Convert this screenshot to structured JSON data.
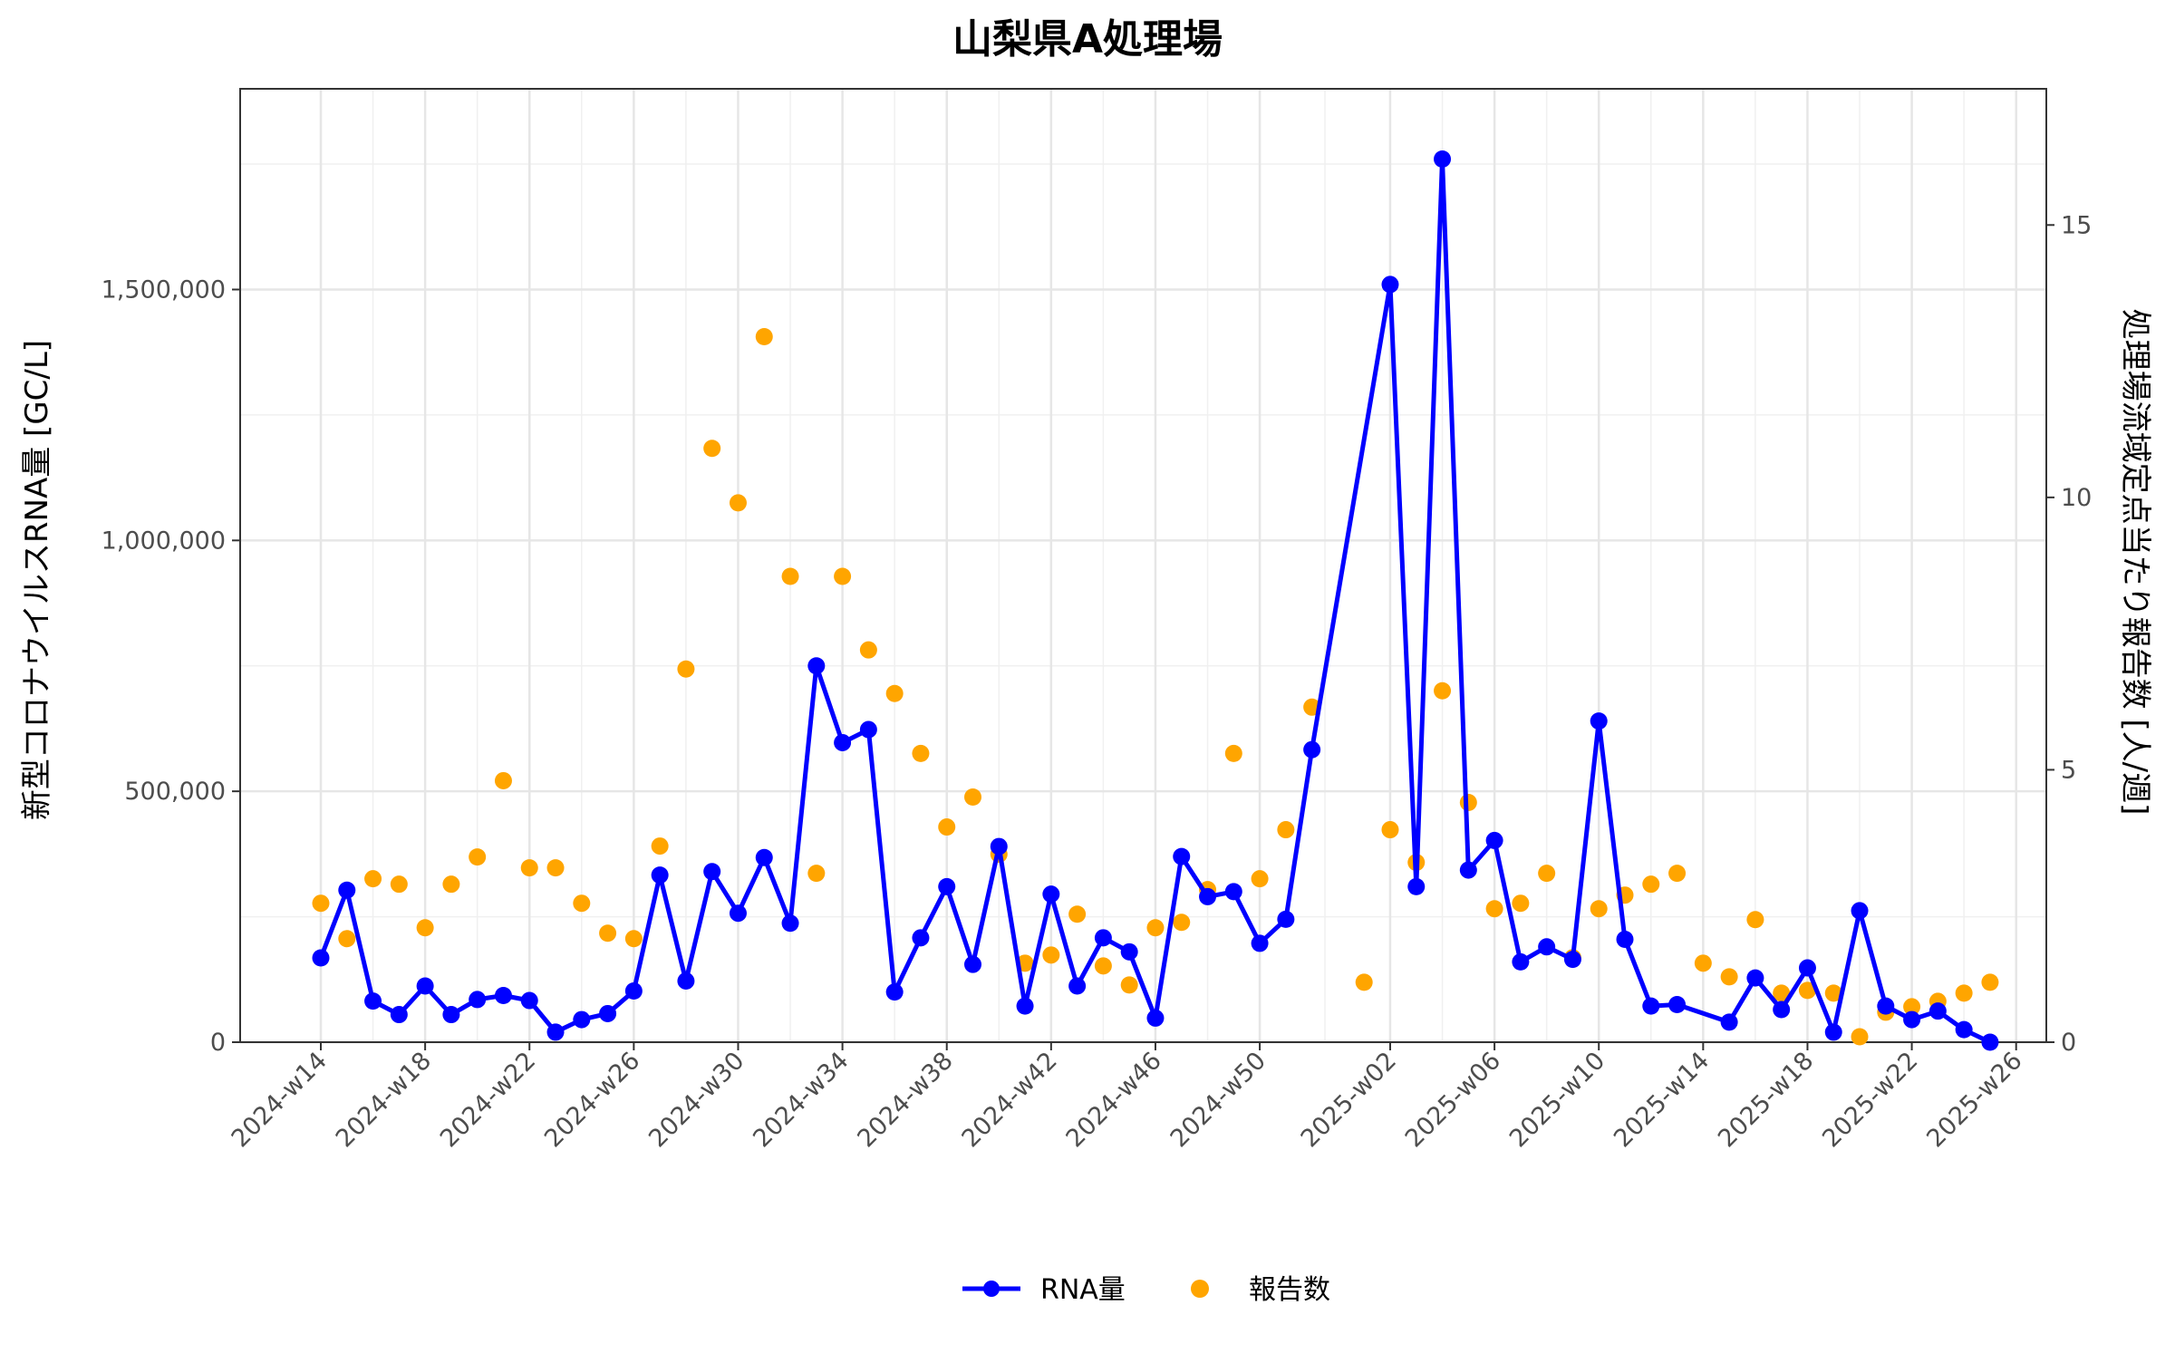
{
  "chart_data": {
    "type": "line",
    "title": "山梨県A処理場",
    "ylabel": "新型コロナウイルスRNA量 [GC/L]",
    "y2label": "処理場流域定点当たり報告数 [人/週]",
    "ylim": [
      0,
      1900000
    ],
    "y2lim": [
      0,
      17.5
    ],
    "y_ticks": [
      0,
      500000,
      1000000,
      1500000
    ],
    "y_tick_labels": [
      "0",
      "500,000",
      "1,000,000",
      "1,500,000"
    ],
    "y2_ticks": [
      0,
      5,
      10,
      15
    ],
    "y2_tick_labels": [
      "0",
      "5",
      "10",
      "15"
    ],
    "x_tick_labels": [
      "2024-w14",
      "2024-w18",
      "2024-w22",
      "2024-w26",
      "2024-w30",
      "2024-w34",
      "2024-w38",
      "2024-w42",
      "2024-w46",
      "2024-w50",
      "2025-w02",
      "2025-w06",
      "2025-w10",
      "2025-w14",
      "2025-w18",
      "2025-w22",
      "2025-w26"
    ],
    "grid": true,
    "legend_position": "bottom",
    "series": [
      {
        "name": "RNA量",
        "axis": "left",
        "color": "#0000ff",
        "points": [
          [
            "2024-w14",
            168000
          ],
          [
            "2024-w15",
            303000
          ],
          [
            "2024-w16",
            82000
          ],
          [
            "2024-w17",
            55000
          ],
          [
            "2024-w18",
            112000
          ],
          [
            "2024-w19",
            55000
          ],
          [
            "2024-w20",
            85000
          ],
          [
            "2024-w21",
            93000
          ],
          [
            "2024-w22",
            83000
          ],
          [
            "2024-w23",
            20000
          ],
          [
            "2024-w24",
            45000
          ],
          [
            "2024-w25",
            57000
          ],
          [
            "2024-w26",
            102000
          ],
          [
            "2024-w27",
            333000
          ],
          [
            "2024-w28",
            122000
          ],
          [
            "2024-w29",
            340000
          ],
          [
            "2024-w30",
            257000
          ],
          [
            "2024-w31",
            368000
          ],
          [
            "2024-w32",
            237000
          ],
          [
            "2024-w33",
            750000
          ],
          [
            "2024-w34",
            597000
          ],
          [
            "2024-w35",
            623000
          ],
          [
            "2024-w36",
            100000
          ],
          [
            "2024-w37",
            208000
          ],
          [
            "2024-w38",
            310000
          ],
          [
            "2024-w39",
            155000
          ],
          [
            "2024-w40",
            390000
          ],
          [
            "2024-w41",
            72000
          ],
          [
            "2024-w42",
            295000
          ],
          [
            "2024-w43",
            112000
          ],
          [
            "2024-w44",
            208000
          ],
          [
            "2024-w45",
            180000
          ],
          [
            "2024-w46",
            48000
          ],
          [
            "2024-w47",
            370000
          ],
          [
            "2024-w48",
            290000
          ],
          [
            "2024-w49",
            300000
          ],
          [
            "2024-w50",
            197000
          ],
          [
            "2024-w51",
            245000
          ],
          [
            "2024-w52",
            583000
          ],
          [
            "2025-w02",
            1510000
          ],
          [
            "2025-w03",
            310000
          ],
          [
            "2025-w04",
            1760000
          ],
          [
            "2025-w05",
            343000
          ],
          [
            "2025-w06",
            402000
          ],
          [
            "2025-w07",
            160000
          ],
          [
            "2025-w08",
            190000
          ],
          [
            "2025-w09",
            165000
          ],
          [
            "2025-w10",
            640000
          ],
          [
            "2025-w11",
            205000
          ],
          [
            "2025-w12",
            72000
          ],
          [
            "2025-w13",
            75000
          ],
          [
            "2025-w15",
            40000
          ],
          [
            "2025-w16",
            128000
          ],
          [
            "2025-w17",
            65000
          ],
          [
            "2025-w18",
            148000
          ],
          [
            "2025-w19",
            20000
          ],
          [
            "2025-w20",
            262000
          ],
          [
            "2025-w21",
            72000
          ],
          [
            "2025-w22",
            45000
          ],
          [
            "2025-w23",
            62000
          ],
          [
            "2025-w24",
            25000
          ],
          [
            "2025-w25",
            0
          ]
        ]
      },
      {
        "name": "報告数",
        "axis": "right",
        "color": "#ffa500",
        "points": [
          [
            "2024-w14",
            2.55
          ],
          [
            "2024-w15",
            1.9
          ],
          [
            "2024-w16",
            3.0
          ],
          [
            "2024-w17",
            2.9
          ],
          [
            "2024-w18",
            2.1
          ],
          [
            "2024-w19",
            2.9
          ],
          [
            "2024-w20",
            3.4
          ],
          [
            "2024-w21",
            4.8
          ],
          [
            "2024-w22",
            3.2
          ],
          [
            "2024-w23",
            3.2
          ],
          [
            "2024-w24",
            2.55
          ],
          [
            "2024-w25",
            2.0
          ],
          [
            "2024-w26",
            1.9
          ],
          [
            "2024-w27",
            3.6
          ],
          [
            "2024-w28",
            6.85
          ],
          [
            "2024-w29",
            10.9
          ],
          [
            "2024-w30",
            9.9
          ],
          [
            "2024-w31",
            12.95
          ],
          [
            "2024-w32",
            8.55
          ],
          [
            "2024-w33",
            3.1
          ],
          [
            "2024-w34",
            8.55
          ],
          [
            "2024-w35",
            7.2
          ],
          [
            "2024-w36",
            6.4
          ],
          [
            "2024-w37",
            5.3
          ],
          [
            "2024-w38",
            3.95
          ],
          [
            "2024-w39",
            4.5
          ],
          [
            "2024-w40",
            3.45
          ],
          [
            "2024-w41",
            1.45
          ],
          [
            "2024-w42",
            1.6
          ],
          [
            "2024-w43",
            2.35
          ],
          [
            "2024-w44",
            1.4
          ],
          [
            "2024-w45",
            1.05
          ],
          [
            "2024-w46",
            2.1
          ],
          [
            "2024-w47",
            2.2
          ],
          [
            "2024-w48",
            2.8
          ],
          [
            "2024-w49",
            5.3
          ],
          [
            "2024-w50",
            3.0
          ],
          [
            "2024-w51",
            3.9
          ],
          [
            "2024-w52",
            6.15
          ],
          [
            "2025-w01",
            1.1
          ],
          [
            "2025-w02",
            3.9
          ],
          [
            "2025-w03",
            3.3
          ],
          [
            "2025-w04",
            6.45
          ],
          [
            "2025-w05",
            4.4
          ],
          [
            "2025-w06",
            2.45
          ],
          [
            "2025-w07",
            2.55
          ],
          [
            "2025-w08",
            3.1
          ],
          [
            "2025-w09",
            1.55
          ],
          [
            "2025-w10",
            2.45
          ],
          [
            "2025-w11",
            2.7
          ],
          [
            "2025-w12",
            2.9
          ],
          [
            "2025-w13",
            3.1
          ],
          [
            "2025-w14",
            1.45
          ],
          [
            "2025-w15",
            1.2
          ],
          [
            "2025-w16",
            2.25
          ],
          [
            "2025-w17",
            0.9
          ],
          [
            "2025-w18",
            0.95
          ],
          [
            "2025-w19",
            0.9
          ],
          [
            "2025-w20",
            0.1
          ],
          [
            "2025-w21",
            0.55
          ],
          [
            "2025-w22",
            0.65
          ],
          [
            "2025-w23",
            0.75
          ],
          [
            "2025-w24",
            0.9
          ],
          [
            "2025-w25",
            1.1
          ]
        ]
      }
    ]
  }
}
